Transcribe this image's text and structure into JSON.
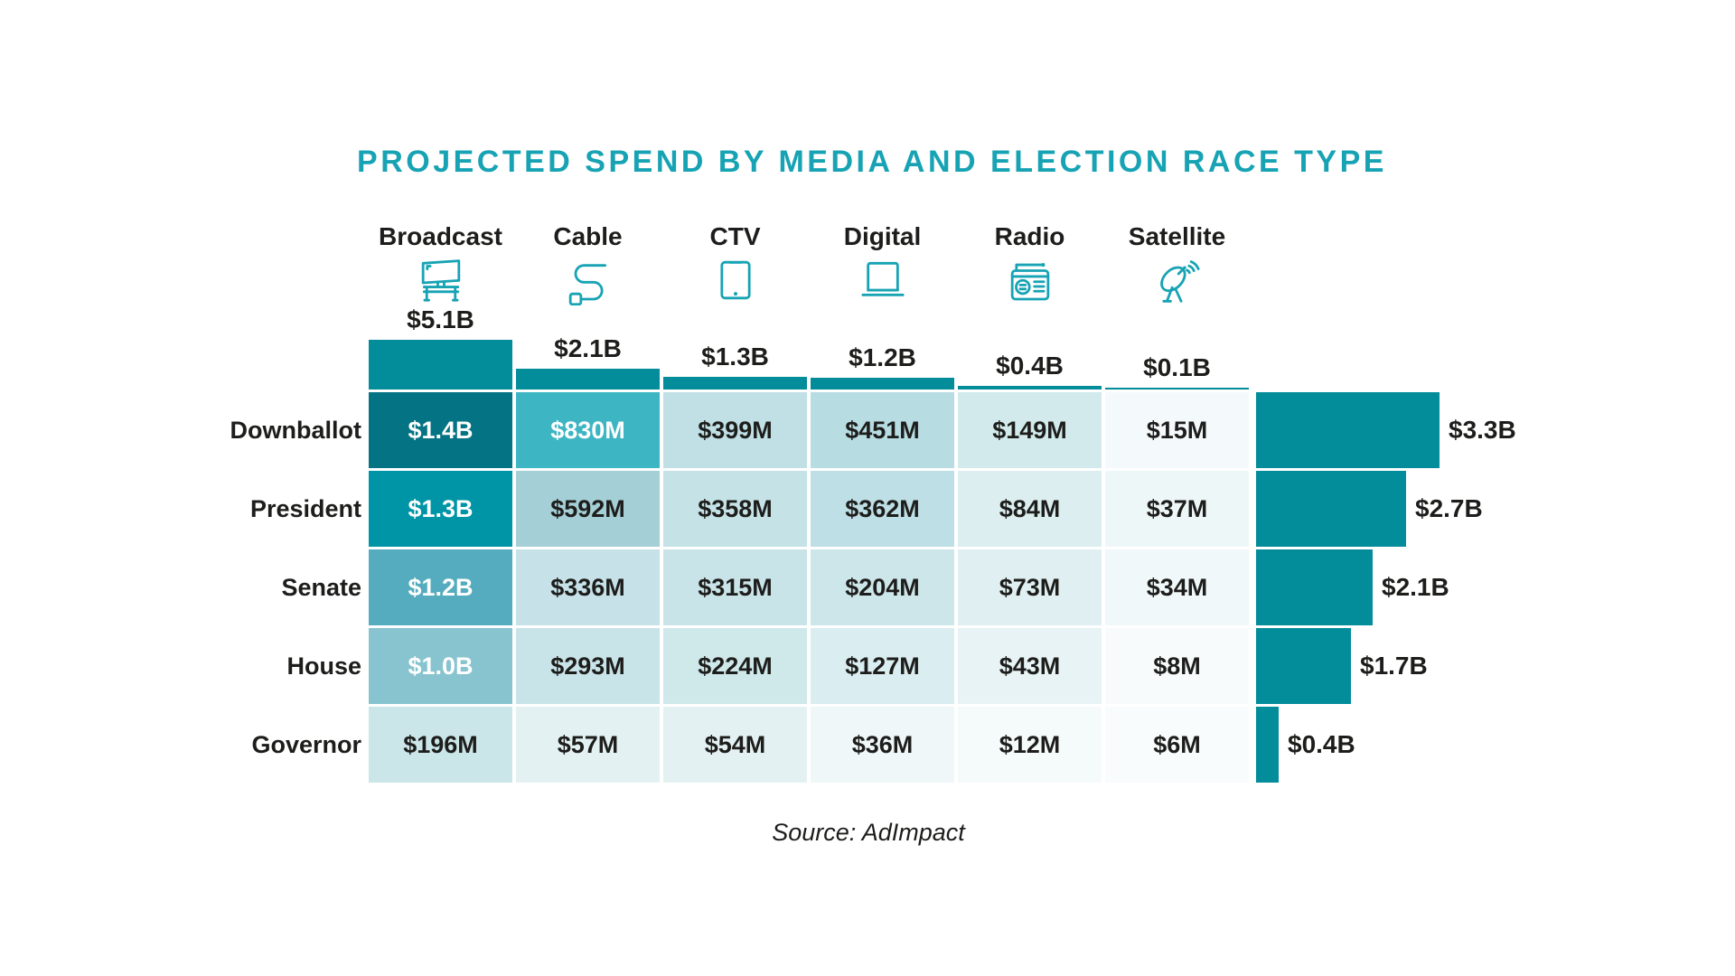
{
  "title": "PROJECTED SPEND BY MEDIA AND ELECTION RACE TYPE",
  "source": "Source: AdImpact",
  "colors": {
    "accent_teal": "#17a3b4",
    "total_bar_teal": "#038c9a",
    "text_dark": "#1d1d1b",
    "text_light": "#ffffff",
    "background": "#ffffff"
  },
  "chart_data": {
    "type": "heatmap",
    "title": "PROJECTED SPEND BY MEDIA AND ELECTION RACE TYPE",
    "source": "Source: AdImpact",
    "unit": "USD",
    "legend_position": "none",
    "columns": [
      {
        "label": "Broadcast",
        "icon": "broadcast-tv-icon",
        "total_label": "$5.1B",
        "total_billions": 5.1
      },
      {
        "label": "Cable",
        "icon": "cable-icon",
        "total_label": "$2.1B",
        "total_billions": 2.1
      },
      {
        "label": "CTV",
        "icon": "ctv-screen-icon",
        "total_label": "$1.3B",
        "total_billions": 1.3
      },
      {
        "label": "Digital",
        "icon": "laptop-icon",
        "total_label": "$1.2B",
        "total_billions": 1.2
      },
      {
        "label": "Radio",
        "icon": "radio-icon",
        "total_label": "$0.4B",
        "total_billions": 0.4
      },
      {
        "label": "Satellite",
        "icon": "satellite-dish-icon",
        "total_label": "$0.1B",
        "total_billions": 0.1
      }
    ],
    "rows": [
      {
        "label": "Downballot",
        "total_label": "$3.3B",
        "total_billions": 3.3,
        "cells": [
          {
            "label": "$1.4B",
            "value_millions": 1400,
            "bg": "#047384",
            "text": "#ffffff"
          },
          {
            "label": "$830M",
            "value_millions": 830,
            "bg": "#3eb5c2",
            "text": "#ffffff"
          },
          {
            "label": "$399M",
            "value_millions": 399,
            "bg": "#c0e0e6",
            "text": "#1d1d1b"
          },
          {
            "label": "$451M",
            "value_millions": 451,
            "bg": "#b7dce2",
            "text": "#1d1d1b"
          },
          {
            "label": "$149M",
            "value_millions": 149,
            "bg": "#d2eaec",
            "text": "#1d1d1b"
          },
          {
            "label": "$15M",
            "value_millions": 15,
            "bg": "#f4fafb",
            "text": "#1d1d1b"
          }
        ]
      },
      {
        "label": "President",
        "total_label": "$2.7B",
        "total_billions": 2.7,
        "cells": [
          {
            "label": "$1.3B",
            "value_millions": 1300,
            "bg": "#0095a6",
            "text": "#ffffff"
          },
          {
            "label": "$592M",
            "value_millions": 592,
            "bg": "#a5cfd7",
            "text": "#1d1d1b"
          },
          {
            "label": "$358M",
            "value_millions": 358,
            "bg": "#c5e2e7",
            "text": "#1d1d1b"
          },
          {
            "label": "$362M",
            "value_millions": 362,
            "bg": "#bedfe5",
            "text": "#1d1d1b"
          },
          {
            "label": "$84M",
            "value_millions": 84,
            "bg": "#dceef0",
            "text": "#1d1d1b"
          },
          {
            "label": "$37M",
            "value_millions": 37,
            "bg": "#eef7f8",
            "text": "#1d1d1b"
          }
        ]
      },
      {
        "label": "Senate",
        "total_label": "$2.1B",
        "total_billions": 2.1,
        "cells": [
          {
            "label": "$1.2B",
            "value_millions": 1200,
            "bg": "#55acbe",
            "text": "#ffffff"
          },
          {
            "label": "$336M",
            "value_millions": 336,
            "bg": "#c6e2e8",
            "text": "#1d1d1b"
          },
          {
            "label": "$315M",
            "value_millions": 315,
            "bg": "#c9e4e9",
            "text": "#1d1d1b"
          },
          {
            "label": "$204M",
            "value_millions": 204,
            "bg": "#cde6ea",
            "text": "#1d1d1b"
          },
          {
            "label": "$73M",
            "value_millions": 73,
            "bg": "#e0f0f2",
            "text": "#1d1d1b"
          },
          {
            "label": "$34M",
            "value_millions": 34,
            "bg": "#f0f8f9",
            "text": "#1d1d1b"
          }
        ]
      },
      {
        "label": "House",
        "total_label": "$1.7B",
        "total_billions": 1.7,
        "cells": [
          {
            "label": "$1.0B",
            "value_millions": 1000,
            "bg": "#88c4cf",
            "text": "#ffffff"
          },
          {
            "label": "$293M",
            "value_millions": 293,
            "bg": "#c9e4e9",
            "text": "#1d1d1b"
          },
          {
            "label": "$224M",
            "value_millions": 224,
            "bg": "#cfe8ea",
            "text": "#1d1d1b"
          },
          {
            "label": "$127M",
            "value_millions": 127,
            "bg": "#daedf0",
            "text": "#1d1d1b"
          },
          {
            "label": "$43M",
            "value_millions": 43,
            "bg": "#e7f3f5",
            "text": "#1d1d1b"
          },
          {
            "label": "$8M",
            "value_millions": 8,
            "bg": "#f7fbfc",
            "text": "#1d1d1b"
          }
        ]
      },
      {
        "label": "Governor",
        "total_label": "$0.4B",
        "total_billions": 0.4,
        "cells": [
          {
            "label": "$196M",
            "value_millions": 196,
            "bg": "#cbe6e9",
            "text": "#1d1d1b"
          },
          {
            "label": "$57M",
            "value_millions": 57,
            "bg": "#e4f1f3",
            "text": "#1d1d1b"
          },
          {
            "label": "$54M",
            "value_millions": 54,
            "bg": "#e4f1f2",
            "text": "#1d1d1b"
          },
          {
            "label": "$36M",
            "value_millions": 36,
            "bg": "#eff7f8",
            "text": "#1d1d1b"
          },
          {
            "label": "$12M",
            "value_millions": 12,
            "bg": "#f5fafb",
            "text": "#1d1d1b"
          },
          {
            "label": "$6M",
            "value_millions": 6,
            "bg": "#f8fcfc",
            "text": "#1d1d1b"
          }
        ]
      }
    ]
  }
}
